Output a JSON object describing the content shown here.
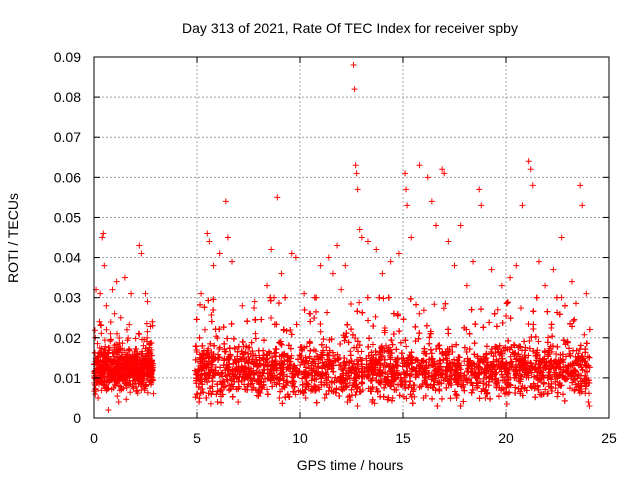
{
  "chart_data": {
    "type": "scatter",
    "title": "Day 313 of 2021, Rate Of TEC Index for receiver spby",
    "xlabel": "GPS time / hours",
    "ylabel": "ROTI / TECUs",
    "xlim": [
      0,
      25
    ],
    "ylim": [
      0,
      0.09
    ],
    "x_ticks": [
      "0",
      "5",
      "10",
      "15",
      "20",
      "25"
    ],
    "y_ticks": [
      "0",
      "0.01",
      "0.02",
      "0.03",
      "0.04",
      "0.05",
      "0.06",
      "0.07",
      "0.08",
      "0.09"
    ],
    "grid": true,
    "marker": "+",
    "color": "#ff0000",
    "series": [
      {
        "points": [
          [
            0.1,
            0.032
          ],
          [
            0.3,
            0.031
          ],
          [
            0.4,
            0.045
          ],
          [
            0.45,
            0.046
          ],
          [
            0.5,
            0.038
          ],
          [
            0.6,
            0.028
          ],
          [
            0.8,
            0.021
          ],
          [
            0.9,
            0.032
          ],
          [
            1.0,
            0.026
          ],
          [
            1.1,
            0.034
          ],
          [
            1.3,
            0.025
          ],
          [
            1.5,
            0.035
          ],
          [
            1.6,
            0.022
          ],
          [
            1.8,
            0.031
          ],
          [
            2.2,
            0.043
          ],
          [
            2.3,
            0.041
          ],
          [
            2.5,
            0.031
          ],
          [
            2.6,
            0.029
          ],
          [
            0.7,
            0.002
          ],
          [
            1.2,
            0.004
          ],
          [
            0.2,
            0.005
          ],
          [
            5.2,
            0.031
          ],
          [
            5.5,
            0.046
          ],
          [
            5.6,
            0.044
          ],
          [
            5.8,
            0.038
          ],
          [
            6.1,
            0.041
          ],
          [
            6.4,
            0.054
          ],
          [
            6.5,
            0.045
          ],
          [
            6.7,
            0.039
          ],
          [
            7.2,
            0.028
          ],
          [
            7.8,
            0.029
          ],
          [
            8.4,
            0.033
          ],
          [
            8.6,
            0.042
          ],
          [
            8.9,
            0.055
          ],
          [
            9.1,
            0.036
          ],
          [
            9.6,
            0.041
          ],
          [
            9.8,
            0.04
          ],
          [
            10.2,
            0.031
          ],
          [
            10.5,
            0.026
          ],
          [
            11.0,
            0.038
          ],
          [
            11.4,
            0.04
          ],
          [
            11.6,
            0.036
          ],
          [
            11.8,
            0.043
          ],
          [
            12.0,
            0.032
          ],
          [
            12.2,
            0.038
          ],
          [
            12.6,
            0.088
          ],
          [
            12.65,
            0.082
          ],
          [
            12.7,
            0.063
          ],
          [
            12.75,
            0.061
          ],
          [
            12.8,
            0.057
          ],
          [
            12.9,
            0.047
          ],
          [
            13.0,
            0.045
          ],
          [
            13.3,
            0.044
          ],
          [
            13.7,
            0.042
          ],
          [
            14.0,
            0.036
          ],
          [
            14.4,
            0.039
          ],
          [
            14.8,
            0.041
          ],
          [
            15.1,
            0.061
          ],
          [
            15.15,
            0.057
          ],
          [
            15.2,
            0.053
          ],
          [
            15.4,
            0.045
          ],
          [
            15.8,
            0.063
          ],
          [
            16.2,
            0.06
          ],
          [
            16.4,
            0.054
          ],
          [
            16.6,
            0.048
          ],
          [
            16.9,
            0.062
          ],
          [
            17.0,
            0.061
          ],
          [
            17.2,
            0.044
          ],
          [
            17.5,
            0.038
          ],
          [
            17.8,
            0.048
          ],
          [
            18.1,
            0.033
          ],
          [
            18.4,
            0.039
          ],
          [
            18.7,
            0.057
          ],
          [
            18.8,
            0.053
          ],
          [
            19.3,
            0.037
          ],
          [
            19.6,
            0.027
          ],
          [
            19.8,
            0.033
          ],
          [
            20.2,
            0.035
          ],
          [
            20.5,
            0.038
          ],
          [
            20.8,
            0.053
          ],
          [
            21.1,
            0.064
          ],
          [
            21.2,
            0.062
          ],
          [
            21.3,
            0.058
          ],
          [
            21.6,
            0.039
          ],
          [
            21.9,
            0.033
          ],
          [
            22.3,
            0.037
          ],
          [
            22.7,
            0.045
          ],
          [
            23.2,
            0.034
          ],
          [
            23.6,
            0.058
          ],
          [
            23.7,
            0.053
          ],
          [
            23.9,
            0.031
          ],
          [
            5.1,
            0.004
          ],
          [
            6.0,
            0.004
          ],
          [
            7.0,
            0.004
          ],
          [
            9.0,
            0.005
          ],
          [
            11.2,
            0.005
          ],
          [
            12.3,
            0.004
          ],
          [
            13.5,
            0.004
          ],
          [
            14.5,
            0.005
          ],
          [
            16.0,
            0.005
          ],
          [
            17.6,
            0.005
          ],
          [
            19.0,
            0.005
          ],
          [
            20.1,
            0.006
          ],
          [
            22.0,
            0.006
          ],
          [
            24.0,
            0.004
          ],
          [
            24.05,
            0.003
          ]
        ]
      }
    ],
    "dense_bands": [
      {
        "x_range": [
          0,
          2.9
        ],
        "y_median": 0.012,
        "y_spread": 0.0045,
        "y_max": 0.024
      },
      {
        "x_range": [
          4.9,
          24.1
        ],
        "y_median": 0.012,
        "y_spread": 0.006,
        "y_max": 0.03
      }
    ]
  }
}
